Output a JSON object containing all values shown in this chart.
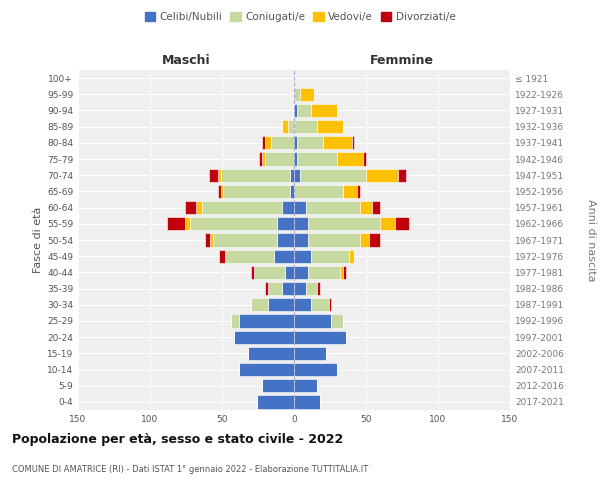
{
  "age_groups": [
    "0-4",
    "5-9",
    "10-14",
    "15-19",
    "20-24",
    "25-29",
    "30-34",
    "35-39",
    "40-44",
    "45-49",
    "50-54",
    "55-59",
    "60-64",
    "65-69",
    "70-74",
    "75-79",
    "80-84",
    "85-89",
    "90-94",
    "95-99",
    "100+"
  ],
  "birth_years": [
    "2017-2021",
    "2012-2016",
    "2007-2011",
    "2002-2006",
    "1997-2001",
    "1992-1996",
    "1987-1991",
    "1982-1986",
    "1977-1981",
    "1972-1976",
    "1967-1971",
    "1962-1966",
    "1957-1961",
    "1952-1956",
    "1947-1951",
    "1942-1946",
    "1937-1941",
    "1932-1936",
    "1927-1931",
    "1922-1926",
    "≤ 1921"
  ],
  "male": {
    "celibi": [
      26,
      22,
      38,
      32,
      42,
      38,
      18,
      8,
      6,
      14,
      12,
      12,
      8,
      3,
      3,
      0,
      0,
      0,
      0,
      0,
      0
    ],
    "coniugati": [
      0,
      0,
      0,
      0,
      0,
      6,
      12,
      10,
      22,
      34,
      44,
      60,
      56,
      46,
      48,
      20,
      16,
      4,
      1,
      0,
      0
    ],
    "vedovi": [
      0,
      0,
      0,
      0,
      0,
      0,
      0,
      0,
      0,
      0,
      2,
      4,
      4,
      2,
      2,
      2,
      4,
      4,
      0,
      0,
      0
    ],
    "divorziati": [
      0,
      0,
      0,
      0,
      0,
      0,
      0,
      2,
      2,
      4,
      4,
      12,
      8,
      2,
      6,
      2,
      2,
      0,
      0,
      0,
      0
    ]
  },
  "female": {
    "nubili": [
      18,
      16,
      30,
      22,
      36,
      26,
      12,
      8,
      10,
      12,
      10,
      10,
      8,
      0,
      4,
      2,
      2,
      0,
      2,
      0,
      0
    ],
    "coniugate": [
      0,
      0,
      0,
      0,
      0,
      8,
      12,
      8,
      22,
      26,
      36,
      50,
      38,
      34,
      46,
      28,
      18,
      16,
      10,
      4,
      0
    ],
    "vedove": [
      0,
      0,
      0,
      0,
      0,
      0,
      0,
      0,
      2,
      4,
      6,
      10,
      8,
      10,
      22,
      18,
      20,
      18,
      18,
      10,
      0
    ],
    "divorziate": [
      0,
      0,
      0,
      0,
      0,
      0,
      2,
      2,
      2,
      0,
      8,
      10,
      6,
      2,
      6,
      2,
      2,
      0,
      0,
      0,
      0
    ]
  },
  "color_celibi": "#4472c4",
  "color_coniugati": "#c5d9a0",
  "color_vedovi": "#ffc000",
  "color_divorziati": "#c0000b",
  "xlim": 150,
  "title": "Popolazione per età, sesso e stato civile - 2022",
  "subtitle": "COMUNE DI AMATRICE (RI) - Dati ISTAT 1° gennaio 2022 - Elaborazione TUTTITALIA.IT",
  "ylabel_left": "Fasce di età",
  "ylabel_right": "Anni di nascita",
  "xlabel_left": "Maschi",
  "xlabel_right": "Femmine",
  "bg_color": "#efefef"
}
